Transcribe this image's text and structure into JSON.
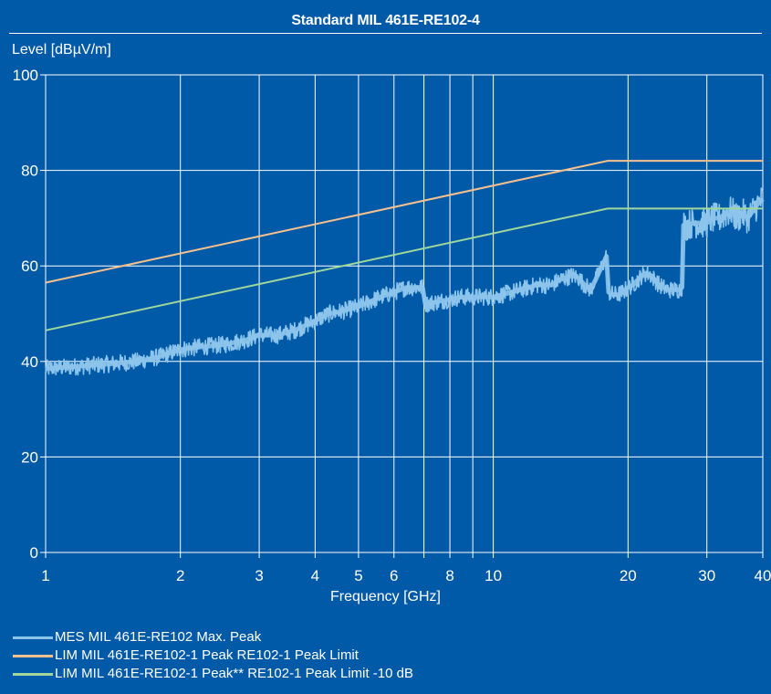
{
  "colors": {
    "background": "#005aa8",
    "grid": "#ffffff",
    "measurement": "#8cc4ec",
    "peak_limit": "#f6c08e",
    "peak_limit_minus10": "#9fd79b"
  },
  "chart_data": {
    "type": "line",
    "title": "Standard MIL 461E-RE102-4",
    "ylabel": "Level [dBµV/m]",
    "xlabel": "Frequency [GHz]",
    "x_scale": "log",
    "xlim": [
      1,
      40
    ],
    "ylim": [
      0,
      100
    ],
    "grid": true,
    "legend_placement": "bottom-left",
    "x_ticks": [
      1,
      2,
      3,
      4,
      5,
      6,
      7,
      8,
      9,
      10,
      20,
      30,
      40
    ],
    "x_tick_labels": [
      "1",
      "2",
      "3",
      "4",
      "5",
      "6",
      "",
      "8",
      "",
      "10",
      "20",
      "30",
      "40"
    ],
    "y_ticks": [
      0,
      20,
      40,
      60,
      80,
      100
    ],
    "y_tick_labels": [
      "0",
      "20",
      "40",
      "60",
      "80",
      "100"
    ],
    "series": [
      {
        "name": "MES MIL 461E-RE102 Max. Peak",
        "color": "#8cc4ec",
        "style": "noisy",
        "x": [
          1,
          1.2,
          1.4,
          1.6,
          1.8,
          2,
          2.2,
          2.5,
          2.8,
          3,
          3.3,
          3.6,
          4,
          4.3,
          4.6,
          5,
          5.3,
          5.6,
          6,
          6.4,
          6.8,
          6.95,
          7.05,
          7.5,
          8,
          8.5,
          9,
          9.5,
          10,
          10.5,
          11,
          11.5,
          12,
          12.5,
          13,
          13.5,
          14,
          14.5,
          15,
          15.5,
          16,
          16.5,
          17,
          17.5,
          17.9,
          18.1,
          18.5,
          19,
          19.5,
          20,
          20.5,
          21,
          21.5,
          22,
          22.5,
          23,
          23.5,
          24,
          24.5,
          25,
          25.5,
          26,
          26.4,
          26.6,
          27,
          28,
          29,
          30,
          31,
          32,
          33,
          34,
          35,
          36,
          37,
          38,
          39,
          40
        ],
        "values": [
          38.5,
          39,
          39.5,
          40,
          41,
          42.5,
          43,
          43.5,
          44.5,
          45.5,
          45.5,
          46.5,
          48.5,
          50,
          50.5,
          51.5,
          52.5,
          53.5,
          54.5,
          55.5,
          55.5,
          55.5,
          52,
          52.5,
          53,
          53.5,
          53.5,
          53.5,
          53.5,
          54,
          54.5,
          55,
          55.5,
          56,
          56,
          56,
          57,
          57.5,
          58,
          57.5,
          56,
          55,
          57.5,
          60,
          62,
          54.5,
          54,
          54,
          54.5,
          55.5,
          56,
          57,
          58,
          58.5,
          58,
          57,
          56,
          55.5,
          55,
          55,
          55,
          55,
          55.5,
          68.5,
          68.5,
          69,
          69,
          69,
          70,
          70,
          71,
          71.5,
          70,
          71,
          70,
          71.5,
          73,
          74
        ]
      },
      {
        "name": "LIM MIL 461E-RE102-1 Peak    RE102-1 Peak Limit",
        "color": "#f6c08e",
        "x": [
          1,
          18,
          40
        ],
        "values": [
          56.5,
          82,
          82
        ]
      },
      {
        "name": "LIM MIL 461E-RE102-1 Peak**    RE102-1 Peak Limit -10 dB",
        "color": "#9fd79b",
        "x": [
          1,
          18,
          40
        ],
        "values": [
          46.5,
          72,
          72
        ]
      }
    ]
  }
}
